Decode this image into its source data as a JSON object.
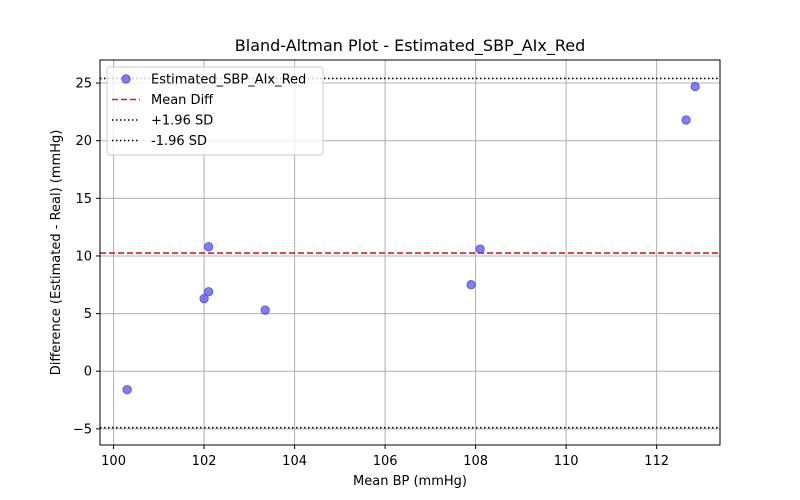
{
  "chart_data": {
    "type": "scatter",
    "title": "Bland-Altman Plot - Estimated_SBP_AIx_Red",
    "xlabel": "Mean BP (mmHg)",
    "ylabel": "Difference (Estimated - Real) (mmHg)",
    "xlim": [
      99.7,
      113.4
    ],
    "ylim": [
      -6.4,
      27.0
    ],
    "x_ticks": [
      "100",
      "102",
      "104",
      "106",
      "108",
      "110",
      "112"
    ],
    "y_ticks": [
      "−5",
      "0",
      "5",
      "10",
      "15",
      "20",
      "25"
    ],
    "grid": true,
    "legend_position": "top-left",
    "series": [
      {
        "name": "Estimated_SBP_AIx_Red",
        "color": "#4a4ae6",
        "x": [
          100.3,
          102.0,
          102.1,
          102.1,
          103.35,
          107.9,
          108.1,
          112.65,
          112.85
        ],
        "y": [
          -1.6,
          6.3,
          6.9,
          10.8,
          5.3,
          7.5,
          10.6,
          21.8,
          24.7
        ]
      }
    ],
    "lines": [
      {
        "name": "Mean Diff",
        "y": 10.25,
        "color": "#e31a1c",
        "style": "dashed"
      },
      {
        "name": "+1.96 SD",
        "y": 25.4,
        "color": "#000000",
        "style": "dotted"
      },
      {
        "name": "-1.96 SD",
        "y": -4.9,
        "color": "#000000",
        "style": "dotted"
      }
    ]
  }
}
